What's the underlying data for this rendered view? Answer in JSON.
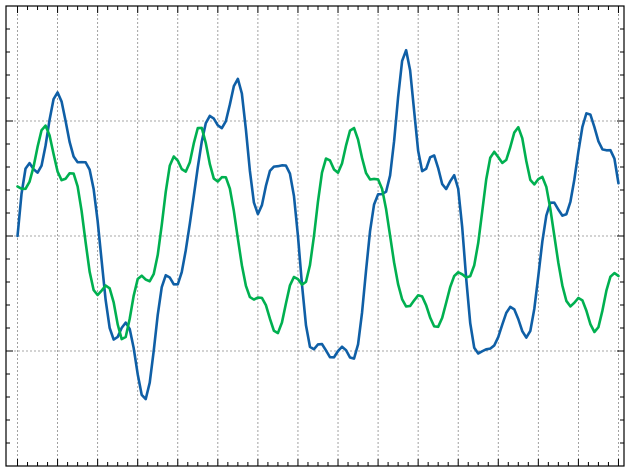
{
  "chart_data": {
    "type": "line",
    "title": "",
    "xlabel": "",
    "ylabel": "",
    "xlim": [
      0,
      3
    ],
    "ylim": [
      -2,
      2
    ],
    "grid": true,
    "x_major_ticks": [
      0.0,
      0.2,
      0.4,
      0.6,
      0.8,
      1.0,
      1.2,
      1.4,
      1.6,
      1.8,
      2.0,
      2.2,
      2.4,
      2.6,
      2.8,
      3.0
    ],
    "y_major_ticks": [
      -1,
      0,
      1
    ],
    "series": [
      {
        "color": "#0f5fa6",
        "x": [
          0.0,
          0.02,
          0.04,
          0.06,
          0.08,
          0.1,
          0.12,
          0.14,
          0.16,
          0.18,
          0.2,
          0.22,
          0.24,
          0.26,
          0.28,
          0.3,
          0.32,
          0.34,
          0.36,
          0.38,
          0.4,
          0.42,
          0.44,
          0.46,
          0.48,
          0.5,
          0.52,
          0.54,
          0.56,
          0.58,
          0.6,
          0.62,
          0.64,
          0.66,
          0.68,
          0.7,
          0.72,
          0.74,
          0.76,
          0.78,
          0.8,
          0.82,
          0.84,
          0.86,
          0.88,
          0.9,
          0.92,
          0.94,
          0.96,
          0.98,
          1.0,
          1.02,
          1.04,
          1.06,
          1.08,
          1.1,
          1.12,
          1.14,
          1.16,
          1.18,
          1.2,
          1.22,
          1.24,
          1.26,
          1.28,
          1.3,
          1.32,
          1.34,
          1.36,
          1.38,
          1.4,
          1.42,
          1.44,
          1.46,
          1.48,
          1.5,
          1.52,
          1.54,
          1.56,
          1.58,
          1.6,
          1.62,
          1.64,
          1.66,
          1.68,
          1.7,
          1.72,
          1.74,
          1.76,
          1.78,
          1.8,
          1.82,
          1.84,
          1.86,
          1.88,
          1.9,
          1.92,
          1.94,
          1.96,
          1.98,
          2.0,
          2.02,
          2.04,
          2.06,
          2.08,
          2.1,
          2.12,
          2.14,
          2.16,
          2.18,
          2.2,
          2.22,
          2.24,
          2.26,
          2.28,
          2.3,
          2.32,
          2.34,
          2.36,
          2.38,
          2.4,
          2.42,
          2.44,
          2.46,
          2.48,
          2.5,
          2.52,
          2.54,
          2.56,
          2.58,
          2.6,
          2.62,
          2.64,
          2.66,
          2.68,
          2.7,
          2.72,
          2.74,
          2.76,
          2.78,
          2.8,
          2.82,
          2.84,
          2.86,
          2.88,
          2.9,
          2.92,
          2.94,
          2.96,
          2.98,
          3.0
        ],
        "y": [
          0.0,
          0.3663,
          0.5857,
          0.6334,
          0.5815,
          0.5506,
          0.6123,
          0.7859,
          1.0111,
          1.1902,
          1.2484,
          1.1692,
          0.9998,
          0.8183,
          0.6912,
          0.6413,
          0.6424,
          0.6408,
          0.5768,
          0.4082,
          0.1305,
          -0.2165,
          -0.5571,
          -0.7996,
          -0.9007,
          -0.8777,
          -0.7989,
          -0.7532,
          -0.8078,
          -0.9753,
          -1.2018,
          -1.3814,
          -1.4177,
          -1.2756,
          -0.9981,
          -0.6851,
          -0.4448,
          -0.3411,
          -0.3606,
          -0.4201,
          -0.4204,
          -0.3134,
          -0.1237,
          0.1052,
          0.3486,
          0.5971,
          0.8221,
          0.9815,
          1.0444,
          1.0208,
          0.9621,
          0.9377,
          0.9978,
          1.1428,
          1.3036,
          1.3666,
          1.2384,
          0.9287,
          0.5671,
          0.2912,
          0.1905,
          0.2677,
          0.4351,
          0.5661,
          0.6032,
          0.6068,
          0.6144,
          0.6125,
          0.5425,
          0.3484,
          0.0,
          -0.4208,
          -0.7764,
          -0.9639,
          -0.9845,
          -0.9427,
          -0.9396,
          -0.9955,
          -1.0544,
          -1.0553,
          -1.0,
          -0.9632,
          -0.993,
          -1.0569,
          -1.0657,
          -0.9427,
          -0.6657,
          -0.2993,
          0.0444,
          0.2741,
          0.3625,
          0.3642,
          0.3854,
          0.5271,
          0.8251,
          1.2072,
          1.5225,
          1.6157,
          1.4397,
          1.0877,
          0.7417,
          0.5641,
          0.5846,
          0.6838,
          0.7004,
          0.5906,
          0.4518,
          0.4084,
          0.4753,
          0.5288,
          0.4104,
          0.0757,
          -0.3715,
          -0.7575,
          -0.9718,
          -1.0217,
          -1.0022,
          -0.9856,
          -0.9793,
          -0.9517,
          -0.8784,
          -0.7707,
          -0.6686,
          -0.6166,
          -0.6379,
          -0.7228,
          -0.8275,
          -0.8835,
          -0.8257,
          -0.6331,
          -0.3468,
          -0.0484,
          0.1786,
          0.2893,
          0.2893,
          0.2296,
          0.177,
          0.1894,
          0.2969,
          0.4924,
          0.7338,
          0.9489,
          1.0669,
          1.0551,
          0.9466,
          0.8236,
          0.7536,
          0.7454,
          0.7461,
          0.6719,
          0.4589
        ]
      },
      {
        "color": "#00b050",
        "x": [
          0.0,
          0.02,
          0.04,
          0.06,
          0.08,
          0.1,
          0.12,
          0.14,
          0.16,
          0.18,
          0.2,
          0.22,
          0.24,
          0.26,
          0.28,
          0.3,
          0.32,
          0.34,
          0.36,
          0.38,
          0.4,
          0.42,
          0.44,
          0.46,
          0.48,
          0.5,
          0.52,
          0.54,
          0.56,
          0.58,
          0.6,
          0.62,
          0.64,
          0.66,
          0.68,
          0.7,
          0.72,
          0.74,
          0.76,
          0.78,
          0.8,
          0.82,
          0.84,
          0.86,
          0.88,
          0.9,
          0.92,
          0.94,
          0.96,
          0.98,
          1.0,
          1.02,
          1.04,
          1.06,
          1.08,
          1.1,
          1.12,
          1.14,
          1.16,
          1.18,
          1.2,
          1.22,
          1.24,
          1.26,
          1.28,
          1.3,
          1.32,
          1.34,
          1.36,
          1.38,
          1.4,
          1.42,
          1.44,
          1.46,
          1.48,
          1.5,
          1.52,
          1.54,
          1.56,
          1.58,
          1.6,
          1.62,
          1.64,
          1.66,
          1.68,
          1.7,
          1.72,
          1.74,
          1.76,
          1.78,
          1.8,
          1.82,
          1.84,
          1.86,
          1.88,
          1.9,
          1.92,
          1.94,
          1.96,
          1.98,
          2.0,
          2.02,
          2.04,
          2.06,
          2.08,
          2.1,
          2.12,
          2.14,
          2.16,
          2.18,
          2.2,
          2.22,
          2.24,
          2.26,
          2.28,
          2.3,
          2.32,
          2.34,
          2.36,
          2.38,
          2.4,
          2.42,
          2.44,
          2.46,
          2.48,
          2.5,
          2.52,
          2.54,
          2.56,
          2.58,
          2.6,
          2.62,
          2.64,
          2.66,
          2.68,
          2.7,
          2.72,
          2.74,
          2.76,
          2.78,
          2.8,
          2.82,
          2.84,
          2.86,
          2.88,
          2.9,
          2.92,
          2.94,
          2.96,
          2.98,
          3.0
        ],
        "y": [
          0.4307,
          0.4107,
          0.4103,
          0.4718,
          0.6014,
          0.7743,
          0.9199,
          0.9596,
          0.8752,
          0.7127,
          0.5605,
          0.4856,
          0.4981,
          0.5452,
          0.5434,
          0.4319,
          0.2171,
          -0.0548,
          -0.3104,
          -0.4705,
          -0.5133,
          -0.4747,
          -0.4308,
          -0.4554,
          -0.5769,
          -0.7678,
          -0.8969,
          -0.8784,
          -0.7207,
          -0.5186,
          -0.3742,
          -0.3452,
          -0.3789,
          -0.3935,
          -0.3304,
          -0.1645,
          0.0949,
          0.3841,
          0.6108,
          0.6913,
          0.6554,
          0.5816,
          0.5598,
          0.6399,
          0.8058,
          0.9385,
          0.9397,
          0.8064,
          0.6263,
          0.4991,
          0.4735,
          0.5111,
          0.5109,
          0.4129,
          0.2184,
          -0.0226,
          -0.2543,
          -0.4319,
          -0.531,
          -0.5527,
          -0.5356,
          -0.5379,
          -0.6006,
          -0.7188,
          -0.8242,
          -0.8441,
          -0.7528,
          -0.5868,
          -0.4301,
          -0.3562,
          -0.3751,
          -0.4232,
          -0.3984,
          -0.2528,
          0.0,
          0.2997,
          0.5513,
          0.6736,
          0.6567,
          0.5787,
          0.5505,
          0.6303,
          0.7868,
          0.9166,
          0.9387,
          0.8383,
          0.6788,
          0.5469,
          0.4914,
          0.4963,
          0.4919,
          0.4094,
          0.2332,
          0.0016,
          -0.2304,
          -0.4194,
          -0.5495,
          -0.6127,
          -0.6088,
          -0.5601,
          -0.5157,
          -0.5255,
          -0.6026,
          -0.7093,
          -0.7859,
          -0.7895,
          -0.7118,
          -0.5803,
          -0.4437,
          -0.3481,
          -0.3152,
          -0.3329,
          -0.3605,
          -0.3495,
          -0.2554,
          -0.06,
          0.2151,
          0.4933,
          0.6806,
          0.7323,
          0.6859,
          0.6353,
          0.6622,
          0.7723,
          0.8997,
          0.9458,
          0.8491,
          0.6514,
          0.4883,
          0.4484,
          0.4947,
          0.5143,
          0.4265,
          0.2353,
          0.0,
          -0.2342,
          -0.4306,
          -0.5646,
          -0.6122,
          -0.58,
          -0.5386,
          -0.5593,
          -0.6501,
          -0.7672,
          -0.8348,
          -0.7928,
          -0.6483,
          -0.4741,
          -0.3536,
          -0.322,
          -0.3474
        ]
      }
    ]
  }
}
